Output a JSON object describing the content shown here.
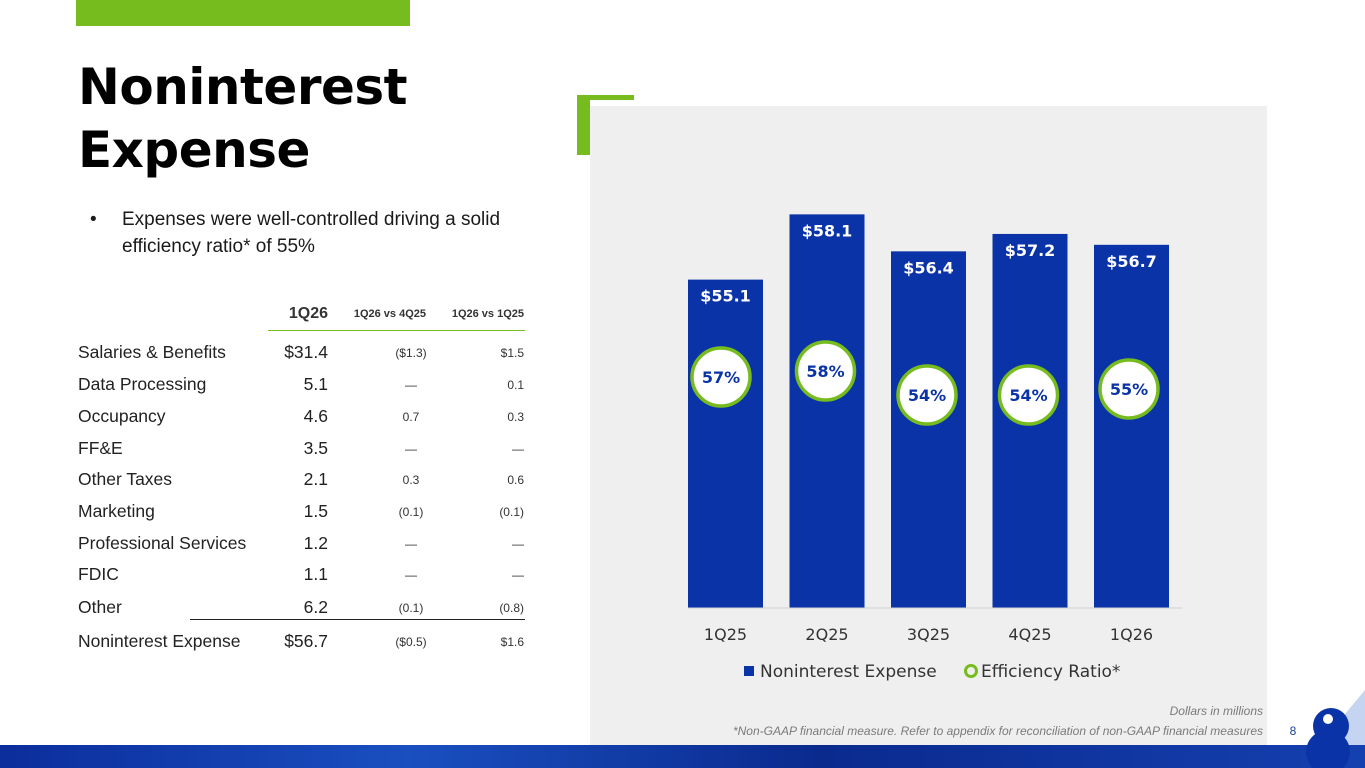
{
  "title": "Noninterest Expense",
  "bullet": "Expenses were well-controlled driving a solid efficiency ratio* of 55%",
  "table": {
    "headers": [
      "1Q26",
      "1Q26 vs 4Q25",
      "1Q26 vs 1Q25"
    ],
    "rows": [
      {
        "label": "Salaries & Benefits",
        "value": "$31.4",
        "vs_4q25": "($1.3)",
        "vs_1q25": "$1.5"
      },
      {
        "label": "Data Processing",
        "value": "5.1",
        "vs_4q25": "—",
        "vs_1q25": "0.1"
      },
      {
        "label": "Occupancy",
        "value": "4.6",
        "vs_4q25": "0.7",
        "vs_1q25": "0.3"
      },
      {
        "label": "FF&E",
        "value": "3.5",
        "vs_4q25": "—",
        "vs_1q25": "—"
      },
      {
        "label": "Other Taxes",
        "value": "2.1",
        "vs_4q25": "0.3",
        "vs_1q25": "0.6"
      },
      {
        "label": "Marketing",
        "value": "1.5",
        "vs_4q25": "(0.1)",
        "vs_1q25": "(0.1)"
      },
      {
        "label": "Professional Services",
        "value": "1.2",
        "vs_4q25": "—",
        "vs_1q25": "—"
      },
      {
        "label": "FDIC",
        "value": "1.1",
        "vs_4q25": "—",
        "vs_1q25": "—"
      },
      {
        "label": "Other",
        "value": "6.2",
        "vs_4q25": "(0.1)",
        "vs_1q25": "(0.8)"
      },
      {
        "label": "Noninterest Expense",
        "value": "$56.7",
        "vs_4q25": "($0.5)",
        "vs_1q25": "$1.6"
      }
    ]
  },
  "chart_data": {
    "type": "bar",
    "categories": [
      "1Q25",
      "2Q25",
      "3Q25",
      "4Q25",
      "1Q26"
    ],
    "series": [
      {
        "name": "Noninterest Expense",
        "values": [
          55.1,
          58.1,
          56.4,
          57.2,
          56.7
        ],
        "labels": [
          "$55.1",
          "$58.1",
          "$56.4",
          "$57.2",
          "$56.7"
        ],
        "color": "#0b33a8"
      },
      {
        "name": "Efficiency Ratio*",
        "values": [
          57,
          58,
          54,
          54,
          55
        ],
        "labels": [
          "57%",
          "58%",
          "54%",
          "54%",
          "55%"
        ],
        "color": "#77bc1f"
      }
    ],
    "legend": [
      "Noninterest Expense",
      "Efficiency Ratio*"
    ],
    "legend_position": "bottom",
    "ylim": [
      0,
      60
    ]
  },
  "footnotes": {
    "units": "Dollars in millions",
    "nongaap": "*Non-GAAP financial measure. Refer to appendix for reconciliation of non-GAAP financial measures"
  },
  "page_number": "8",
  "colors": {
    "accent": "#77bc1f",
    "brand": "#0b33a8"
  }
}
